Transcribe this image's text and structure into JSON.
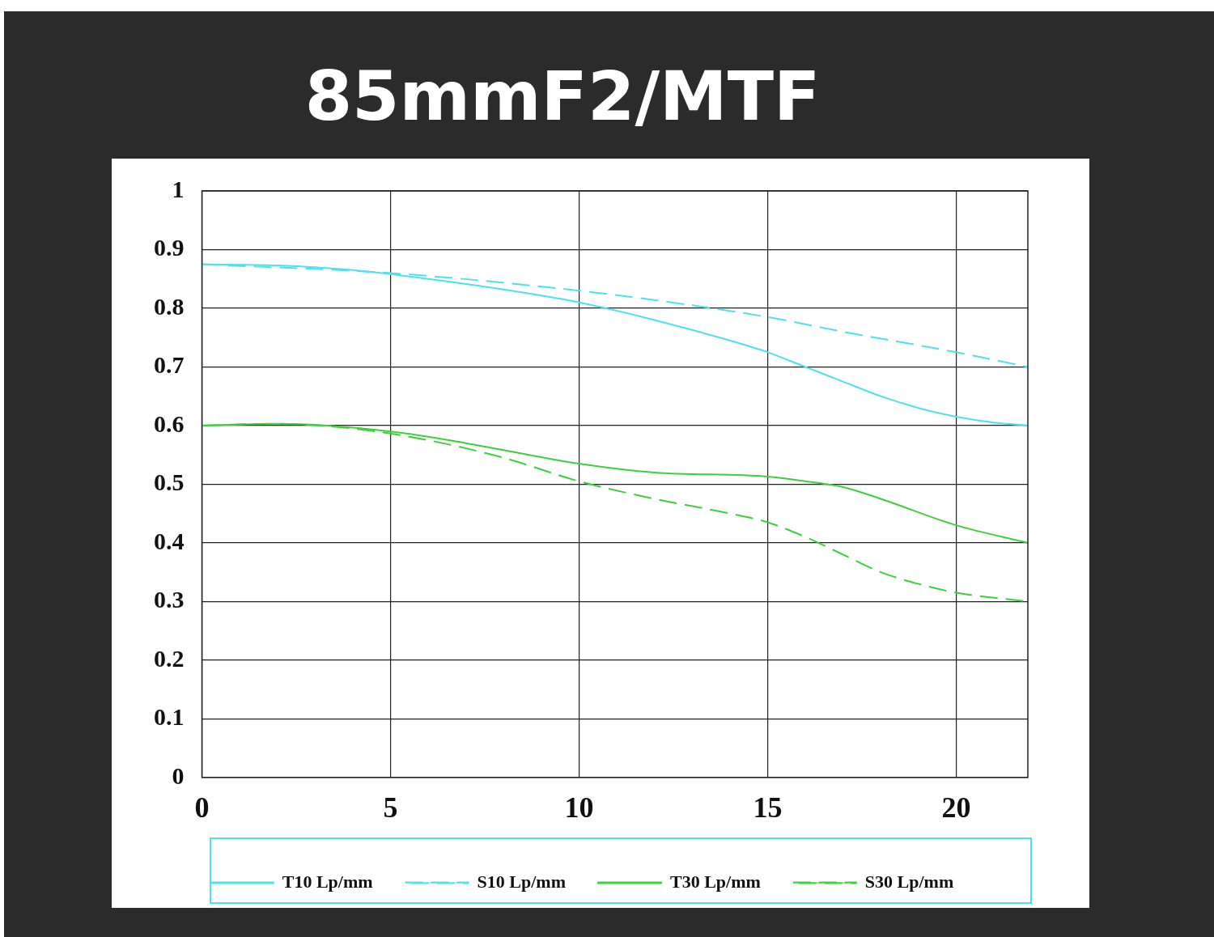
{
  "chart_data": {
    "type": "line",
    "title": "85mmF2/MTF",
    "xlim": [
      0,
      21.9
    ],
    "xticks": [
      0,
      5,
      10,
      15,
      20
    ],
    "ylim": [
      0,
      1
    ],
    "yticks": [
      0,
      0.1,
      0.2,
      0.3,
      0.4,
      0.5,
      0.6,
      0.7,
      0.8,
      0.9,
      1
    ],
    "grid": true,
    "legend": "bottom",
    "marker": "none",
    "series": [
      {
        "name": "T10 Lp/mm",
        "color": "#4fe0ea",
        "line_style": "solid",
        "x": [
          0,
          2,
          4,
          6,
          8,
          10,
          12,
          14,
          15,
          16,
          17,
          18,
          19,
          20,
          21,
          21.9
        ],
        "values": [
          0.875,
          0.873,
          0.865,
          0.85,
          0.832,
          0.81,
          0.78,
          0.745,
          0.725,
          0.7,
          0.675,
          0.65,
          0.63,
          0.615,
          0.605,
          0.6
        ]
      },
      {
        "name": "S10 Lp/mm",
        "color": "#4fe0ea",
        "line_style": "dashed",
        "x": [
          0,
          5,
          10,
          13,
          15,
          17,
          20,
          21.9
        ],
        "values": [
          0.875,
          0.86,
          0.83,
          0.805,
          0.785,
          0.76,
          0.725,
          0.7
        ]
      },
      {
        "name": "T30 Lp/mm",
        "color": "#3ecf3e",
        "line_style": "solid",
        "x": [
          0,
          2,
          5,
          7,
          10,
          12,
          15,
          16,
          17,
          18,
          20,
          21.9
        ],
        "values": [
          0.6,
          0.603,
          0.59,
          0.57,
          0.535,
          0.52,
          0.513,
          0.505,
          0.495,
          0.475,
          0.43,
          0.4
        ]
      },
      {
        "name": "S30 Lp/mm",
        "color": "#3ecf3e",
        "line_style": "dashed",
        "x": [
          0,
          2,
          4,
          6,
          8,
          10,
          12,
          14,
          15,
          16,
          17,
          18,
          19,
          20,
          21.9
        ],
        "values": [
          0.6,
          0.603,
          0.595,
          0.575,
          0.545,
          0.505,
          0.475,
          0.45,
          0.435,
          0.41,
          0.38,
          0.35,
          0.33,
          0.315,
          0.3
        ]
      }
    ]
  }
}
